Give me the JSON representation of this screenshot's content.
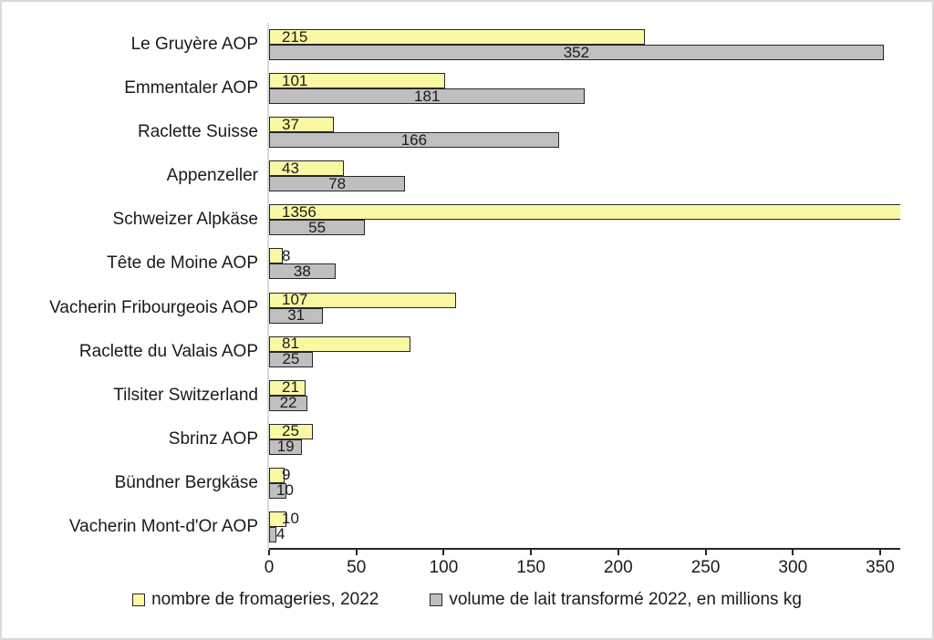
{
  "colors": {
    "series_yellow_fill": "#FBF8A3",
    "series_gray_fill": "#BFBFBF",
    "bar_border": "#262626",
    "x_axis_line": "#262626",
    "y_axis_line": "#D9D9D9",
    "frame_border": "#D9D9D9",
    "text": "#1A1A1A",
    "background": "#FFFFFF"
  },
  "chart_data": {
    "type": "bar",
    "orientation": "horizontal",
    "title": "",
    "xlabel": "",
    "ylabel": "",
    "grid": false,
    "legend_position": "bottom",
    "categories": [
      "Le Gruyère AOP",
      "Emmentaler AOP",
      "Raclette Suisse",
      "Appenzeller",
      "Schweizer Alpkäse",
      "Tête de Moine AOP",
      "Vacherin Fribourgeois AOP",
      "Raclette du Valais AOP",
      "Tilsiter Switzerland",
      "Sbrinz AOP",
      "Bündner Bergkäse",
      "Vacherin Mont-d'Or AOP"
    ],
    "series": [
      {
        "name": "nombre de fromageries, 2022",
        "color_key": "series_yellow_fill",
        "label_position": "inside-base",
        "values": [
          215,
          101,
          37,
          43,
          1356,
          8,
          107,
          81,
          21,
          25,
          9,
          10
        ]
      },
      {
        "name": "volume de lait transformé 2022, en millions kg",
        "color_key": "series_gray_fill",
        "label_position": "inside-center",
        "values": [
          352,
          181,
          166,
          78,
          55,
          38,
          31,
          25,
          22,
          19,
          10,
          4
        ]
      }
    ],
    "x_ticks": [
      0,
      50,
      100,
      150,
      200,
      250,
      300,
      350
    ],
    "xlim": [
      0,
      362
    ]
  }
}
